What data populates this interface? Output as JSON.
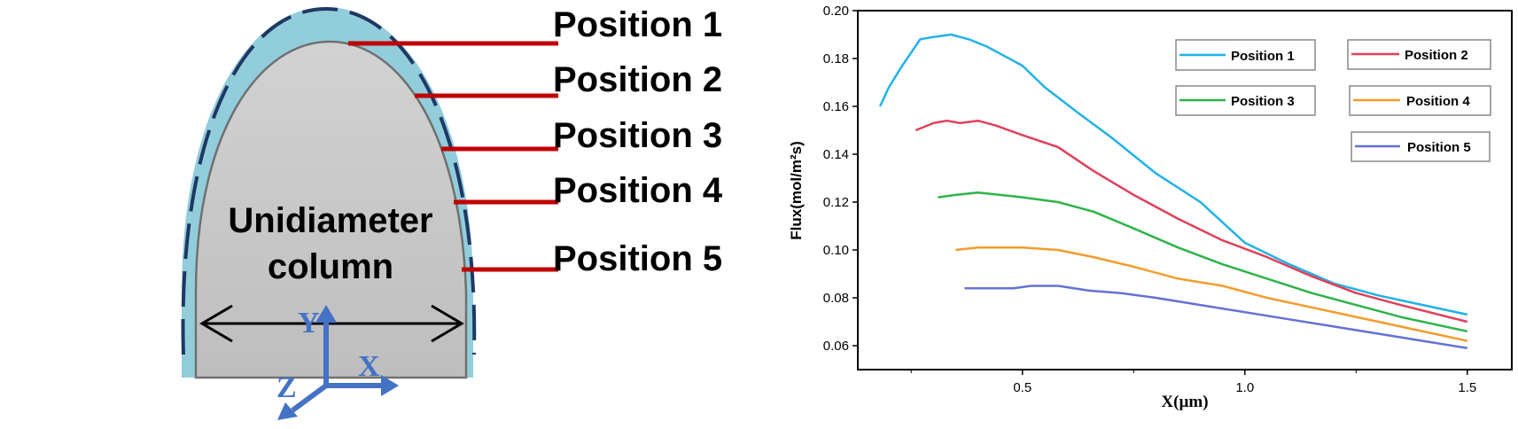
{
  "diagram": {
    "position_labels": [
      "Position 1",
      "Position 2",
      "Position 3",
      "Position 4",
      "Position 5"
    ],
    "column_label_line1": "Unidiameter",
    "column_label_line2": "column",
    "axis_letters": {
      "y": "Y",
      "x": "X",
      "z": "Z"
    },
    "colors": {
      "outer_layer": "#92CDDC",
      "column_fill": "#C8C8C8",
      "dashed_boundary": "#1F3864",
      "pointer_lines": "#C00000",
      "axes": "#4472C4"
    }
  },
  "chart_data": {
    "type": "line",
    "title": "",
    "xlabel": "X(µm)",
    "ylabel": "Flux(mol/m²s)",
    "xlim": [
      0.13,
      1.6
    ],
    "ylim": [
      0.05,
      0.2
    ],
    "xticks": [
      0.5,
      1.0,
      1.5
    ],
    "xtick_labels": [
      "0.5",
      "1.0",
      "1.5"
    ],
    "yticks": [
      0.06,
      0.08,
      0.1,
      0.12,
      0.14,
      0.16,
      0.18,
      0.2
    ],
    "ytick_labels": [
      "0.06",
      "0.08",
      "0.10",
      "0.12",
      "0.14",
      "0.16",
      "0.18",
      "0.20"
    ],
    "grid": false,
    "legend_placement": "top-right",
    "series": [
      {
        "name": "Position 1",
        "color": "#1FB2E6",
        "x": [
          0.18,
          0.2,
          0.23,
          0.27,
          0.3,
          0.34,
          0.38,
          0.42,
          0.46,
          0.5,
          0.55,
          0.62,
          0.7,
          0.8,
          0.9,
          1.0,
          1.1,
          1.2,
          1.3,
          1.4,
          1.5
        ],
        "y": [
          0.16,
          0.168,
          0.177,
          0.188,
          0.189,
          0.19,
          0.188,
          0.185,
          0.181,
          0.177,
          0.168,
          0.158,
          0.147,
          0.132,
          0.12,
          0.103,
          0.094,
          0.086,
          0.081,
          0.077,
          0.073
        ]
      },
      {
        "name": "Position 2",
        "color": "#E0405A",
        "x": [
          0.26,
          0.3,
          0.33,
          0.36,
          0.4,
          0.44,
          0.5,
          0.58,
          0.66,
          0.75,
          0.85,
          0.95,
          1.05,
          1.15,
          1.25,
          1.35,
          1.5
        ],
        "y": [
          0.15,
          0.153,
          0.154,
          0.153,
          0.154,
          0.152,
          0.148,
          0.143,
          0.133,
          0.123,
          0.113,
          0.104,
          0.097,
          0.089,
          0.082,
          0.077,
          0.07
        ]
      },
      {
        "name": "Position 3",
        "color": "#2DB34A",
        "x": [
          0.31,
          0.35,
          0.4,
          0.45,
          0.5,
          0.58,
          0.66,
          0.75,
          0.85,
          0.95,
          1.05,
          1.15,
          1.25,
          1.35,
          1.5
        ],
        "y": [
          0.122,
          0.123,
          0.124,
          0.123,
          0.122,
          0.12,
          0.116,
          0.109,
          0.101,
          0.094,
          0.088,
          0.082,
          0.077,
          0.072,
          0.066
        ]
      },
      {
        "name": "Position 4",
        "color": "#F39C2C",
        "x": [
          0.35,
          0.4,
          0.45,
          0.5,
          0.58,
          0.66,
          0.75,
          0.85,
          0.95,
          1.05,
          1.15,
          1.25,
          1.35,
          1.5
        ],
        "y": [
          0.1,
          0.101,
          0.101,
          0.101,
          0.1,
          0.097,
          0.093,
          0.088,
          0.085,
          0.08,
          0.076,
          0.072,
          0.068,
          0.062
        ]
      },
      {
        "name": "Position 5",
        "color": "#6272D4",
        "x": [
          0.37,
          0.42,
          0.48,
          0.52,
          0.58,
          0.65,
          0.72,
          0.8,
          0.9,
          1.0,
          1.1,
          1.2,
          1.3,
          1.4,
          1.5
        ],
        "y": [
          0.084,
          0.084,
          0.084,
          0.085,
          0.085,
          0.083,
          0.082,
          0.08,
          0.077,
          0.074,
          0.071,
          0.068,
          0.065,
          0.062,
          0.059
        ]
      }
    ]
  }
}
